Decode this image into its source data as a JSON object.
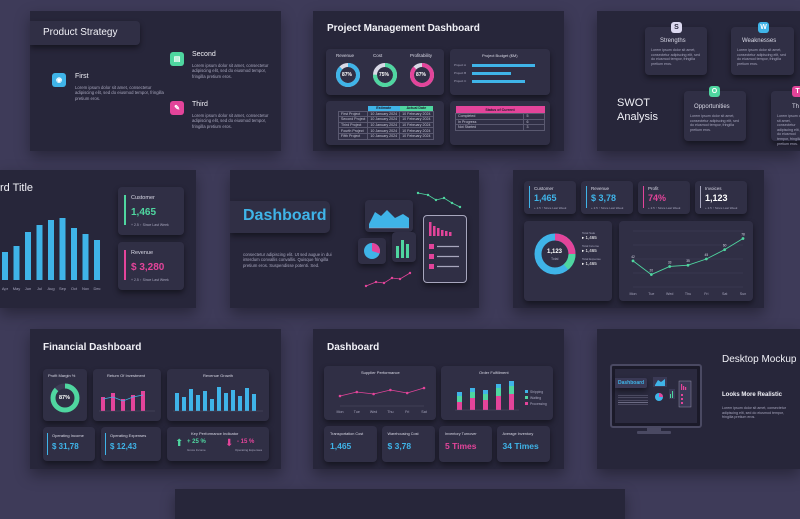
{
  "lorem": "Lorem ipsum dolor sit amet, consectetur adipiscing elit, sed do eiusmod tempor, fringilla pretium eros.",
  "slides": {
    "product_strategy": {
      "title": "Product Strategy",
      "items": [
        {
          "label": "First",
          "color": "#3fb4e8"
        },
        {
          "label": "Second",
          "color": "#4fd6a0"
        },
        {
          "label": "Third",
          "color": "#e3449a"
        }
      ]
    },
    "project_mgmt": {
      "title": "Project Management Dashboard",
      "donuts": [
        {
          "label": "Revenue",
          "value": "87%",
          "fraction": 0.87,
          "color": "#3fb4e8"
        },
        {
          "label": "Cost",
          "value": "75%",
          "fraction": 0.75,
          "color": "#4fd6a0"
        },
        {
          "label": "Profitability",
          "value": "87%",
          "fraction": 0.87,
          "color": "#e3449a"
        }
      ],
      "budget": {
        "title": "Project Budget ($M)",
        "rows": [
          "Project A",
          "Project B",
          "Project C"
        ],
        "values": [
          0.9,
          0.55,
          0.75
        ]
      },
      "table": {
        "headers": [
          "",
          "Estimate",
          "Actual Date"
        ],
        "rows": [
          [
            "First Project",
            "10 January 2024",
            "10 February 2024"
          ],
          [
            "Second Project",
            "10 January 2024",
            "10 February 2024"
          ],
          [
            "Third Project",
            "10 January 2024",
            "10 February 2024"
          ],
          [
            "Fourth Project",
            "10 January 2024",
            "10 February 2024"
          ],
          [
            "Fifth Project",
            "10 January 2024",
            "10 February 2024"
          ]
        ]
      },
      "status": {
        "header": "Status of Current",
        "rows": [
          [
            "Completed",
            "5"
          ],
          [
            "In Progress",
            "6"
          ],
          [
            "Not Started",
            "3"
          ]
        ]
      }
    },
    "swot": {
      "title_line1": "SWOT",
      "title_line2": "Analysis",
      "items": [
        {
          "letter": "S",
          "label": "Strengths",
          "color": "#dcd9f0"
        },
        {
          "letter": "W",
          "label": "Weaknesses",
          "color": "#3fb4e8"
        },
        {
          "letter": "O",
          "label": "Opportunities",
          "color": "#4fd6a0"
        },
        {
          "letter": "T",
          "label": "Th",
          "color": "#e3449a"
        }
      ]
    },
    "bar_title": {
      "title": "rd Title",
      "bars": [
        {
          "label": "Apr",
          "value": 28
        },
        {
          "label": "May",
          "value": 34
        },
        {
          "label": "Jun",
          "value": 48
        },
        {
          "label": "Jul",
          "value": 55
        },
        {
          "label": "Aug",
          "value": 60
        },
        {
          "label": "Sep",
          "value": 62
        },
        {
          "label": "Oct",
          "value": 52
        },
        {
          "label": "Nov",
          "value": 46
        },
        {
          "label": "Dec",
          "value": 40
        }
      ],
      "customer": {
        "label": "Customer",
        "value": "1,465",
        "note": "+ 2.5 ↑ Since Last Week"
      },
      "revenue": {
        "label": "Revenue",
        "value": "$ 3,280",
        "note": "+ 2.5 ↑ Since Last Week"
      }
    },
    "dashboard_hero": {
      "title": "Dashboard",
      "text": "consectetur adipiscing elit. Ut sed augue in dui interdum convallis convallis. Quisque fringilla pretium eros. Suspendisse potenti. Sed."
    },
    "kpi_dash": {
      "kpis": [
        {
          "label": "Customer",
          "value": "1,465",
          "color": "#3fb4e8",
          "note": "+ 2.5 ↑ Since Last Week"
        },
        {
          "label": "Revenue",
          "value": "$ 3,78",
          "color": "#3fb4e8",
          "note": "+ 2.5 ↑ Since Last Week"
        },
        {
          "label": "Profit",
          "value": "74%",
          "color": "#e3449a",
          "note": "+ 2.5 ↑ Since Last Week"
        },
        {
          "label": "Invoices",
          "value": "1,123",
          "color": "#ffffff",
          "note": "+ 2.5 ↑ Since Last Week"
        }
      ],
      "donut": {
        "center": "1,123",
        "sub": "Total",
        "legend": [
          {
            "label": "Total Sale",
            "value": "1,465"
          },
          {
            "label": "Total Income",
            "value": "1,465"
          },
          {
            "label": "Total Expense",
            "value": "1,465"
          }
        ]
      },
      "line": {
        "labels": [
          "Mon",
          "Tue",
          "Wed",
          "Thu",
          "Fri",
          "Sat",
          "Sun"
        ],
        "values": [
          42,
          20,
          33,
          35,
          45,
          60,
          78
        ]
      }
    },
    "financial": {
      "title": "Financial Dashboard",
      "margin": {
        "label": "Profit Margin %",
        "value": "87%",
        "fraction": 0.87
      },
      "roi": {
        "label": "Return Of Investment"
      },
      "growth": {
        "label": "Revenue Growth"
      },
      "income": {
        "label": "Operating Income",
        "value": "$ 31,78"
      },
      "expenses": {
        "label": "Operating Expenses",
        "value": "$ 12,43"
      },
      "kpi": {
        "label": "Key Performance Indicator",
        "up": "+ 25 %",
        "down": "- 15 %",
        "up_label": "Gross Income",
        "down_label": "Operating Expenses"
      }
    },
    "dashboard2": {
      "title": "Dashboard",
      "supplier": {
        "label": "Supplier Performance",
        "labels": [
          "Mon",
          "Tue",
          "Wed",
          "Thu",
          "Fri",
          "Sat"
        ]
      },
      "order": {
        "label": "Order Fulfillment",
        "legend": [
          "Shipping",
          "Waiting",
          "Processing"
        ]
      },
      "stats": [
        {
          "label": "Transportation Cost",
          "value": "1,465",
          "color": "#3fb4e8"
        },
        {
          "label": "Warehousing Cost",
          "value": "$ 3,78",
          "color": "#3fb4e8"
        },
        {
          "label": "Inventory Turnover",
          "value": "5 Times",
          "color": "#e3449a"
        },
        {
          "label": "Average Inventory",
          "value": "34 Times",
          "color": "#3fb4e8"
        }
      ]
    },
    "desktop": {
      "title": "Desktop Mockup",
      "subtitle": "Looks More Realistic",
      "screen_title": "Dashboard"
    }
  }
}
